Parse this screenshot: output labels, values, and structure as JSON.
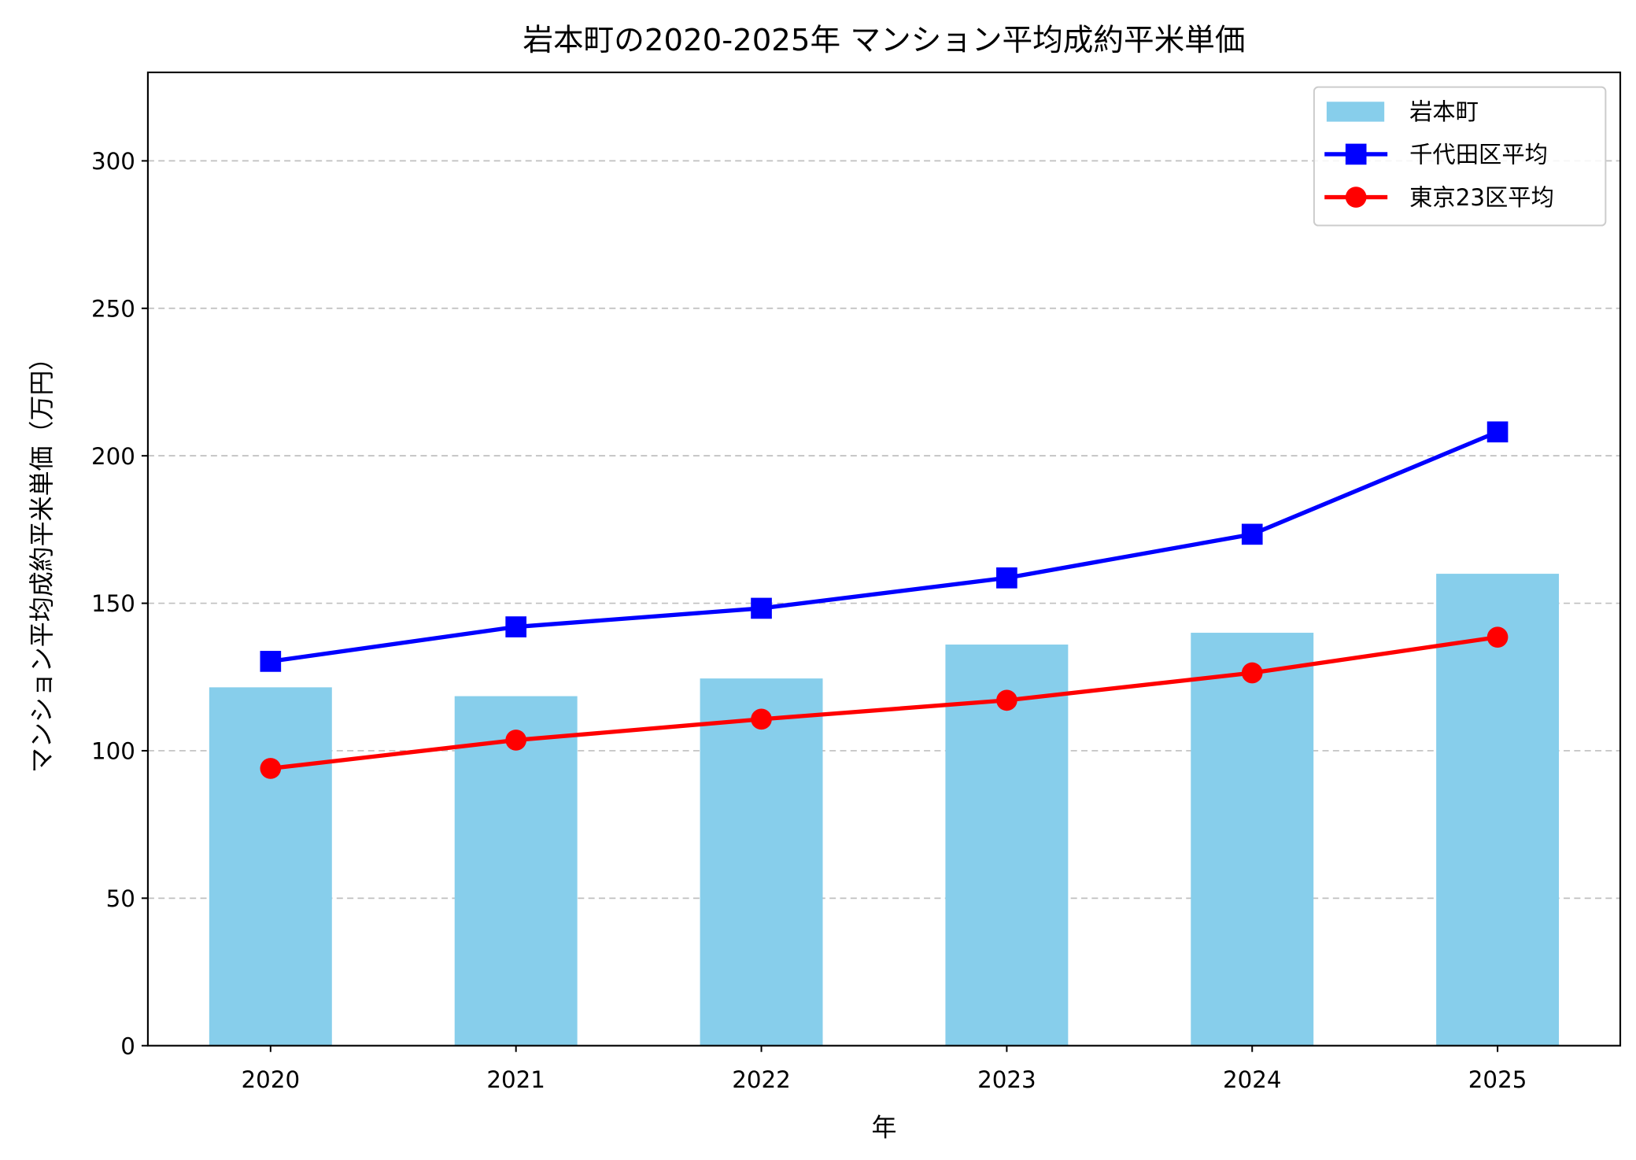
{
  "chart_data": {
    "type": "bar",
    "title": "岩本町の2020-2025年 マンション平均成約平米単価",
    "xlabel": "年",
    "ylabel": "マンション平均成約平米単価（万円）",
    "categories": [
      "2020",
      "2021",
      "2022",
      "2023",
      "2024",
      "2025"
    ],
    "ylim": [
      0,
      330
    ],
    "yticks": [
      0,
      50,
      100,
      150,
      200,
      250,
      300
    ],
    "grid": "y-dashed",
    "legend_position": "top-right",
    "series": [
      {
        "name": "岩本町",
        "type": "bar",
        "color": "#87CEEB",
        "values": [
          121.5,
          118.5,
          124.5,
          136.0,
          140.0,
          160.0
        ]
      },
      {
        "name": "千代田区平均",
        "type": "line",
        "marker": "square",
        "color": "#0000FF",
        "values": [
          130.3,
          142.0,
          148.3,
          158.6,
          173.4,
          208.1
        ]
      },
      {
        "name": "東京23区平均",
        "type": "line",
        "marker": "circle",
        "color": "#FF0000",
        "values": [
          94.0,
          103.6,
          110.7,
          117.1,
          126.4,
          138.5
        ]
      }
    ]
  }
}
